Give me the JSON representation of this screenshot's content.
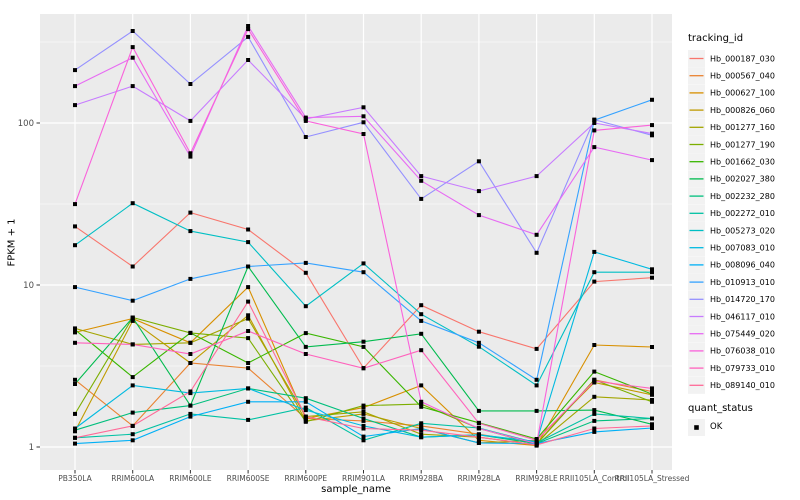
{
  "figure": {
    "background": "#FFFFFF",
    "panel_bg": "#EBEBEB",
    "grid_color": "#FFFFFF",
    "tick_color": "#333333",
    "tick_label_color": "#4D4D4D",
    "legend": {
      "tracking_title": "tracking_id",
      "quant_title": "quant_status",
      "quant_label": "OK",
      "key_bg": "#F2F2F2",
      "point_color": "#000000"
    }
  },
  "chart_data": {
    "type": "line",
    "title": "",
    "xlabel": "sample_name",
    "ylabel": "FPKM + 1",
    "y_scale": "log10",
    "yticks": [
      1,
      10,
      100
    ],
    "ytick_labels": [
      "1",
      "10",
      "100"
    ],
    "y_minor_ticks": [
      3.1623,
      31.623,
      316.23
    ],
    "ylim": [
      0.9,
      450
    ],
    "grid": true,
    "legend_position": "right",
    "point_shape": "filled-black-square",
    "quant_status": "OK",
    "categories": [
      "PB350LA",
      "RRIM600LA",
      "RRIM600LE",
      "RRIM600SE",
      "RRIM600PE",
      "RRIM901LA",
      "RRIM928BA",
      "RRIM928LA",
      "RRIM928LE",
      "RRII105LA_Control",
      "RRII105LA_Stressed"
    ],
    "series": [
      {
        "name": "Hb_000187_030",
        "color": "#F8766D",
        "values": [
          23,
          13,
          28,
          22,
          11.9,
          3.07,
          7.5,
          5.15,
          4.03,
          10.5,
          11.1
        ]
      },
      {
        "name": "Hb_000567_040",
        "color": "#EA8331",
        "values": [
          2.6,
          1.35,
          3.3,
          3.07,
          1.5,
          1.45,
          1.35,
          1.2,
          1.05,
          2.6,
          2.2
        ]
      },
      {
        "name": "Hb_000627_100",
        "color": "#D89000",
        "values": [
          5.1,
          6.2,
          4.4,
          9.7,
          1.5,
          1.75,
          2.4,
          1.1,
          1.02,
          4.26,
          4.14
        ]
      },
      {
        "name": "Hb_000826_060",
        "color": "#C09B00",
        "values": [
          1.25,
          6.0,
          3.3,
          6.5,
          1.45,
          1.6,
          1.3,
          1.06,
          1.1,
          2.5,
          2.1
        ]
      },
      {
        "name": "Hb_001277_160",
        "color": "#A3A500",
        "values": [
          5.4,
          4.3,
          4.4,
          6.2,
          1.54,
          1.65,
          1.2,
          1.15,
          1.03,
          2.04,
          1.95
        ]
      },
      {
        "name": "Hb_001277_190",
        "color": "#7CAE00",
        "values": [
          1.6,
          6.3,
          5.06,
          4.7,
          1.43,
          1.8,
          1.84,
          1.3,
          1.04,
          2.6,
          1.9
        ]
      },
      {
        "name": "Hb_001662_030",
        "color": "#39B600",
        "values": [
          5.3,
          2.7,
          5.06,
          3.3,
          5.05,
          4.15,
          1.77,
          1.41,
          1.12,
          2.92,
          2.12
        ]
      },
      {
        "name": "Hb_002027_380",
        "color": "#00BB4E",
        "values": [
          2.45,
          6.3,
          1.8,
          13.0,
          4.15,
          4.47,
          5.0,
          1.67,
          1.67,
          1.69,
          1.38
        ]
      },
      {
        "name": "Hb_002232_280",
        "color": "#00BF7D",
        "values": [
          1.27,
          1.63,
          1.8,
          2.3,
          2.0,
          1.5,
          1.15,
          1.19,
          1.05,
          1.45,
          1.5
        ]
      },
      {
        "name": "Hb_002272_010",
        "color": "#00C1A3",
        "values": [
          1.14,
          1.2,
          1.6,
          1.47,
          1.75,
          1.1,
          1.4,
          1.31,
          1.06,
          1.6,
          1.5
        ]
      },
      {
        "name": "Hb_005273_020",
        "color": "#00BFC4",
        "values": [
          17.6,
          32,
          21.5,
          18.4,
          7.4,
          13.6,
          6.6,
          4.16,
          2.4,
          12,
          12
        ]
      },
      {
        "name": "Hb_007083_010",
        "color": "#00BAE0",
        "values": [
          1.3,
          2.4,
          2.15,
          2.3,
          1.69,
          1.35,
          1.15,
          1.19,
          1.08,
          16,
          12.5
        ]
      },
      {
        "name": "Hb_008096_040",
        "color": "#00B0F6",
        "values": [
          1.05,
          1.1,
          1.54,
          1.9,
          1.9,
          1.16,
          1.3,
          1.06,
          1.05,
          1.24,
          1.31
        ]
      },
      {
        "name": "Hb_010913_010",
        "color": "#35A2FF",
        "values": [
          9.7,
          8.0,
          10.9,
          13.0,
          13.7,
          12.0,
          6.0,
          4.4,
          2.6,
          104,
          139
        ]
      },
      {
        "name": "Hb_014720_170",
        "color": "#9590FF",
        "values": [
          212,
          370,
          174,
          340,
          82,
          101,
          34,
          58,
          15.8,
          105,
          84
        ]
      },
      {
        "name": "Hb_046117_010",
        "color": "#C77CFF",
        "values": [
          129,
          169,
          103,
          245,
          106,
          125,
          47,
          38,
          47,
          100,
          86
        ]
      },
      {
        "name": "Hb_075449_020",
        "color": "#E76BF3",
        "values": [
          169,
          253,
          62,
          397,
          108,
          110,
          44,
          27,
          20.4,
          71,
          59
        ]
      },
      {
        "name": "Hb_076038_010",
        "color": "#FA62DB",
        "values": [
          31.6,
          294,
          65,
          380,
          103,
          85.5,
          1.9,
          1.3,
          1.05,
          90,
          97
        ]
      },
      {
        "name": "Hb_079733_010",
        "color": "#FF62BC",
        "values": [
          4.4,
          4.3,
          3.75,
          5.2,
          3.75,
          3.06,
          3.96,
          1.4,
          1.1,
          2.55,
          2.3
        ]
      },
      {
        "name": "Hb_089140_010",
        "color": "#FF6A98",
        "values": [
          1.14,
          1.35,
          2.2,
          7.9,
          1.54,
          1.3,
          1.27,
          1.15,
          1.03,
          1.3,
          1.35
        ]
      }
    ]
  }
}
